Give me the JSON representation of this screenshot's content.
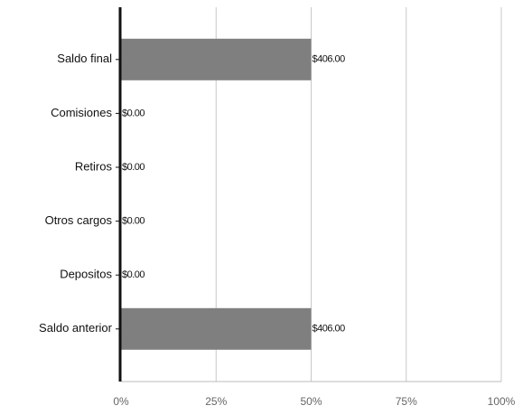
{
  "chart_data": {
    "type": "bar",
    "orientation": "horizontal",
    "categories": [
      "Saldo final",
      "Comisiones",
      "Retiros",
      "Otros cargos",
      "Depositos",
      "Saldo anterior"
    ],
    "values": [
      406,
      0,
      0,
      0,
      0,
      406
    ],
    "value_labels": [
      "$406.00",
      "$0.00",
      "$0.00",
      "$0.00",
      "$0.00",
      "$406.00"
    ],
    "color": "#7f7f7f",
    "xlim": [
      0,
      812
    ],
    "xticks": [
      {
        "value": 0,
        "label": "0%"
      },
      {
        "value": 203,
        "label": "25%"
      },
      {
        "value": 406,
        "label": "50%"
      },
      {
        "value": 609,
        "label": "75%"
      },
      {
        "value": 812,
        "label": "100%"
      }
    ],
    "grid": true
  }
}
